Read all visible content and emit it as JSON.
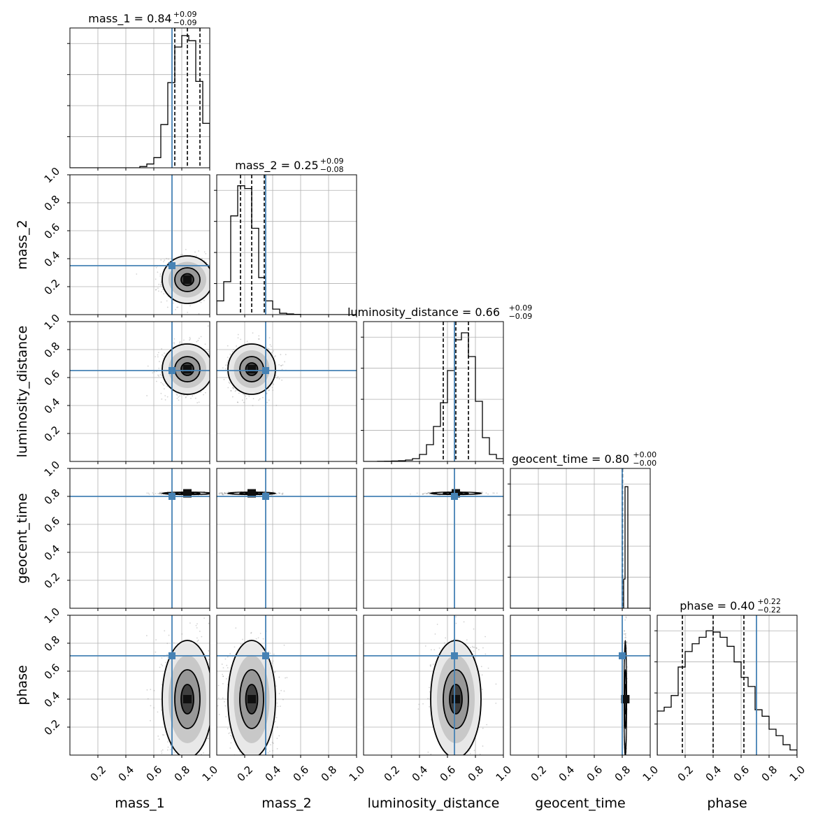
{
  "chart_data": {
    "type": "corner",
    "parameters": [
      "mass_1",
      "mass_2",
      "luminosity_distance",
      "geocent_time",
      "phase"
    ],
    "axis_range": [
      0,
      1
    ],
    "tick_labels": [
      "0.2",
      "0.4",
      "0.6",
      "0.8",
      "1.0"
    ],
    "grid": true,
    "colors": {
      "truth": "#4682b4",
      "hist": "#000000",
      "quantile": "#000000",
      "points": "#808080"
    },
    "truths": {
      "mass_1": 0.73,
      "mass_2": 0.35,
      "luminosity_distance": 0.65,
      "geocent_time": 0.8,
      "phase": 0.71
    },
    "summaries": [
      {
        "param": "mass_1",
        "label": "mass_1",
        "median": 0.84,
        "plus": 0.09,
        "minus": 0.09,
        "text_main": "mass_1 = 0.84",
        "text_plus": "+0.09",
        "text_minus": "−0.09"
      },
      {
        "param": "mass_2",
        "label": "mass_2",
        "median": 0.25,
        "plus": 0.09,
        "minus": 0.08,
        "text_main": "mass_2 = 0.25",
        "text_plus": "+0.09",
        "text_minus": "−0.08"
      },
      {
        "param": "luminosity_distance",
        "label": "luminosity_distance",
        "median": 0.66,
        "plus": 0.09,
        "minus": 0.09,
        "text_main": "luminosity_distance = 0.66",
        "text_plus": "+0.09",
        "text_minus": "−0.09"
      },
      {
        "param": "geocent_time",
        "label": "geocent_time",
        "median": 0.8,
        "plus": 0.0,
        "minus": 0.0,
        "text_main": "geocent_time = 0.80",
        "text_plus": "+0.00",
        "text_minus": "−0.00"
      },
      {
        "param": "phase",
        "label": "phase",
        "median": 0.4,
        "plus": 0.22,
        "minus": 0.22,
        "text_main": "phase = 0.40",
        "text_plus": "+0.22",
        "text_minus": "−0.22"
      }
    ],
    "histograms": {
      "mass_1": {
        "range": [
          0.5,
          1.0
        ],
        "heights": [
          0.01,
          0.03,
          0.08,
          0.34,
          0.67,
          0.95,
          1.04,
          1.0,
          0.68,
          0.35
        ],
        "ymax": 1.1,
        "quantiles": [
          0.75,
          0.84,
          0.93
        ]
      },
      "mass_2": {
        "range": [
          0.0,
          0.6
        ],
        "heights": [
          0.1,
          0.24,
          0.72,
          0.94,
          0.92,
          0.63,
          0.27,
          0.1,
          0.04,
          0.01,
          0.005,
          0.002
        ],
        "ymax": 1.02,
        "quantiles": [
          0.17,
          0.25,
          0.34
        ]
      },
      "luminosity_distance": {
        "range": [
          0.1,
          1.0
        ],
        "heights": [
          0.001,
          0.002,
          0.003,
          0.005,
          0.01,
          0.02,
          0.05,
          0.12,
          0.25,
          0.42,
          0.65,
          0.87,
          0.92,
          0.75,
          0.43,
          0.17,
          0.05,
          0.02
        ],
        "ymax": 1.0,
        "quantiles": [
          0.57,
          0.66,
          0.75
        ]
      },
      "geocent_time": {
        "range": [
          0.75,
          0.85
        ],
        "heights": [
          0.0,
          0.0,
          0.0,
          0.0,
          0.0,
          0.0,
          0.24,
          1.0,
          1.0,
          0.0
        ],
        "ymax": 1.15,
        "quantiles": [
          0.8,
          0.801,
          0.802
        ]
      },
      "phase": {
        "range": [
          0.0,
          1.0
        ],
        "heights": [
          0.34,
          0.37,
          0.46,
          0.68,
          0.8,
          0.86,
          0.91,
          0.96,
          0.95,
          0.91,
          0.84,
          0.72,
          0.6,
          0.53,
          0.35,
          0.3,
          0.2,
          0.15,
          0.08,
          0.04
        ],
        "ymax": 1.08,
        "quantiles": [
          0.18,
          0.4,
          0.62
        ]
      }
    },
    "marginal_stats": {
      "mass_1": {
        "mean": 0.84,
        "sd": 0.09
      },
      "mass_2": {
        "mean": 0.25,
        "sd": 0.085
      },
      "luminosity_distance": {
        "mean": 0.66,
        "sd": 0.09
      },
      "geocent_time": {
        "mean": 0.822,
        "sd": 0.004
      },
      "phase": {
        "mean": 0.4,
        "sd": 0.21
      }
    }
  }
}
